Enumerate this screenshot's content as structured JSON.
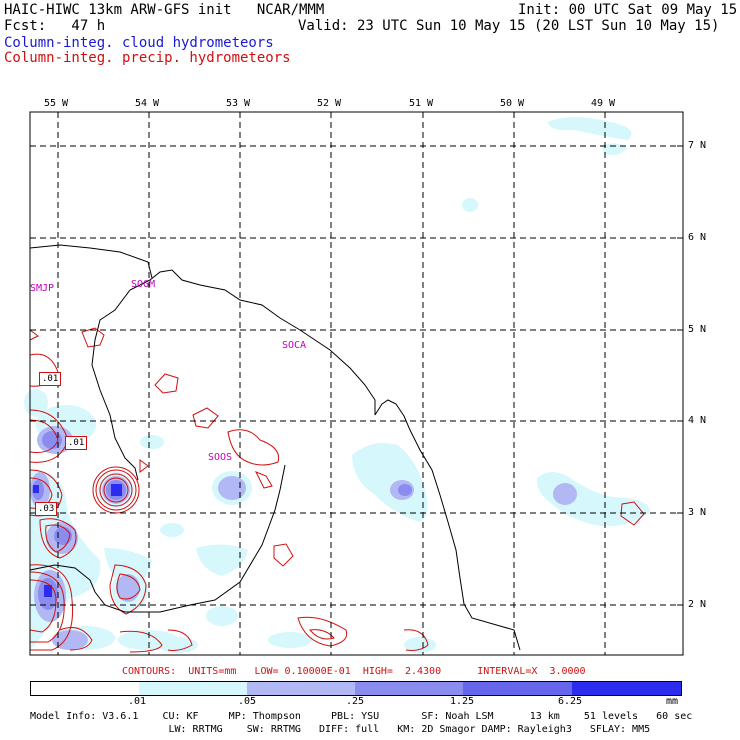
{
  "header": {
    "line1_left": "HAIC-HIWC 13km ARW-GFS init   NCAR/MMM",
    "line1_right": "Init: 00 UTC Sat 09 May 15",
    "line2_left": "Fcst:   47 h",
    "line2_right": "Valid: 23 UTC Sun 10 May 15 (20 LST Sun 10 May 15)",
    "legend_cloud": "Column-integ. cloud hydrometeors",
    "legend_precip": "Column-integ. precip. hydrometeors"
  },
  "map": {
    "lon_labels": [
      "55 W",
      "54 W",
      "53 W",
      "52 W",
      "51 W",
      "50 W",
      "49 W"
    ],
    "lat_labels": [
      "7 N",
      "6 N",
      "5 N",
      "4 N",
      "3 N",
      "2 N"
    ],
    "stations": [
      "SMJP",
      "SOGM",
      "SOCA",
      "SOOS"
    ],
    "contour_boxes": [
      ".01",
      ".01",
      ".03"
    ]
  },
  "contours_line": "CONTOURS:  UNITS=mm   LOW= 0.10000E-01  HIGH=  2.4300      INTERVAL=X  3.0000",
  "colorbar": {
    "colors": [
      "#ffffff",
      "#d6f7fb",
      "#b2b8f4",
      "#8a8cf0",
      "#6666ec",
      "#2c2cee"
    ],
    "ticks": [
      ".01",
      ".05",
      ".25",
      "1.25",
      "6.25"
    ],
    "units": "mm"
  },
  "footer": {
    "line1": "Model Info: V3.6.1    CU: KF     MP: Thompson     PBL: YSU       SF: Noah LSM      13 km    51 levels   60 sec",
    "line2": "                       LW: RRTMG    SW: RRTMG   DIFF: full   KM: 2D Smagor DAMP: Rayleigh3   SFLAY: MM5"
  }
}
